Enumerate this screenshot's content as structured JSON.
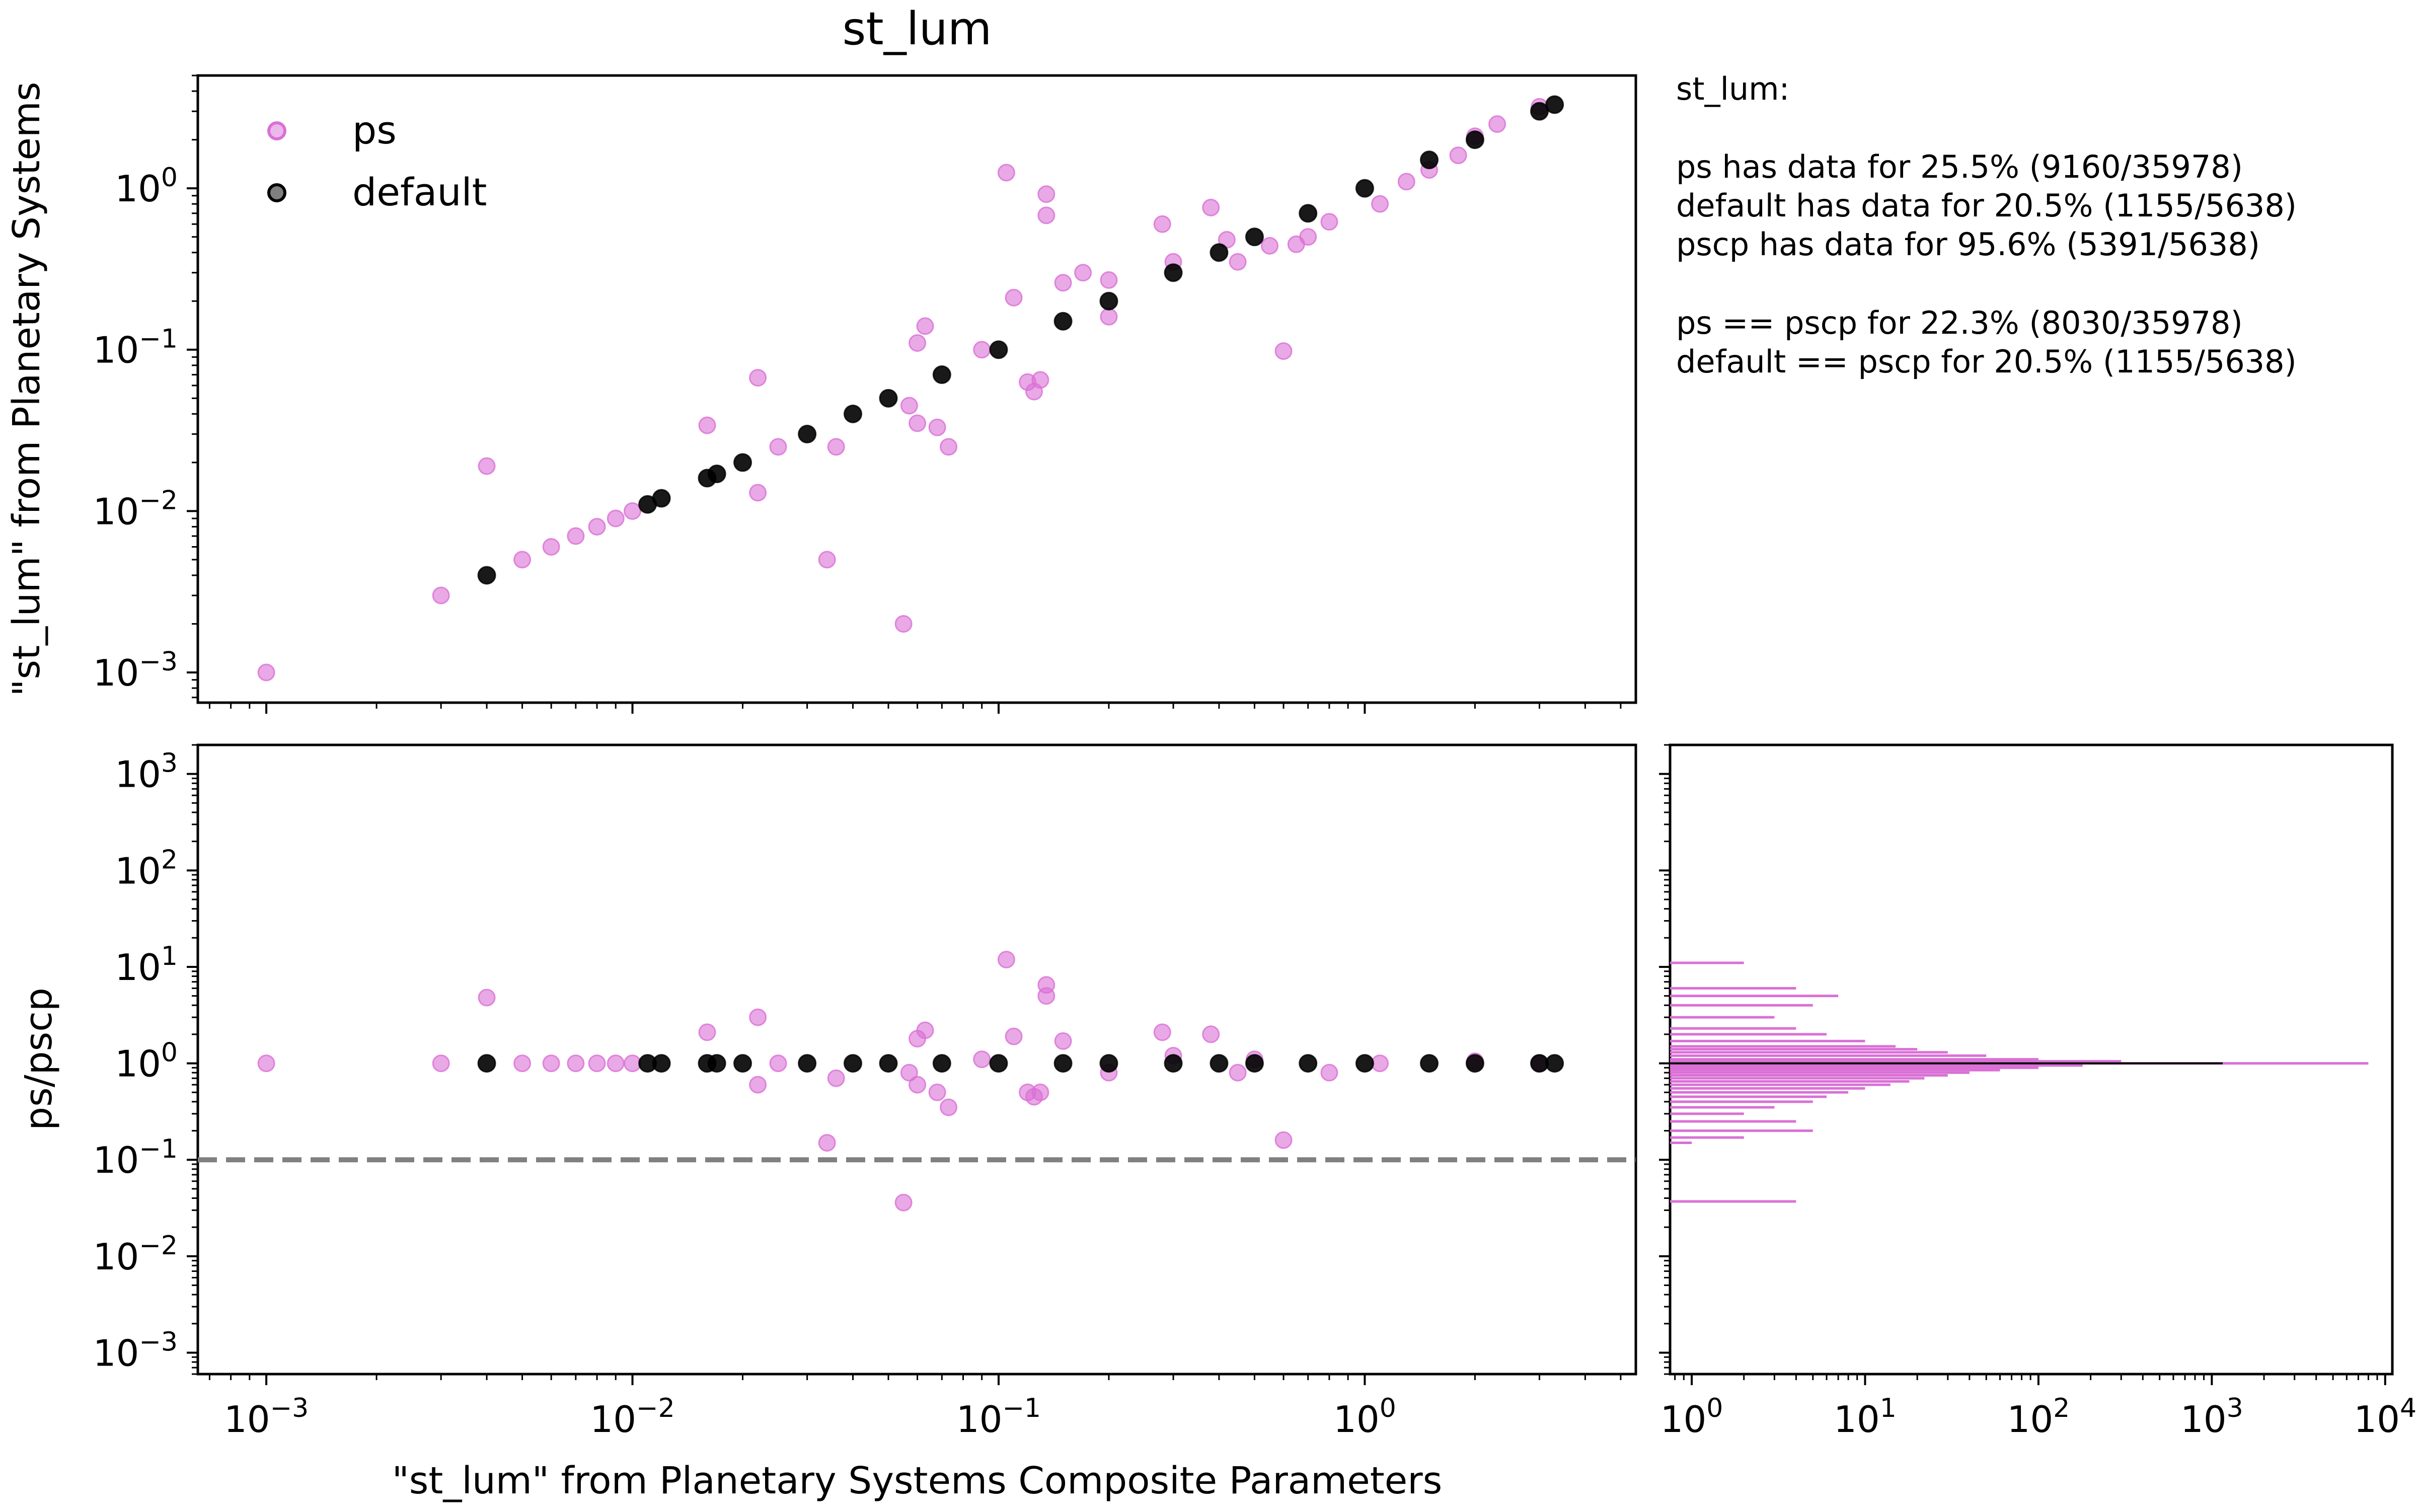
{
  "chart_data": [
    {
      "type": "scatter",
      "title": "st_lum",
      "xlabel": "",
      "ylabel": "\"st_lum\" from Planetary Systems",
      "xscale": "log",
      "yscale": "log",
      "xlim": [
        0.00065,
        5.5
      ],
      "ylim": [
        0.00065,
        5.0
      ],
      "x_ticks": [
        "10^-3",
        "10^-2",
        "10^-1",
        "10^0"
      ],
      "y_ticks": [
        "10^-3",
        "10^-2",
        "10^-1",
        "10^0"
      ],
      "legend": {
        "position": "top-left",
        "entries": [
          "ps",
          "default"
        ]
      },
      "series": [
        {
          "name": "ps",
          "color": "#da70d6",
          "points": [
            [
              0.001,
              0.001
            ],
            [
              0.003,
              0.003
            ],
            [
              0.004,
              0.019
            ],
            [
              0.005,
              0.005
            ],
            [
              0.006,
              0.006
            ],
            [
              0.007,
              0.007
            ],
            [
              0.008,
              0.008
            ],
            [
              0.009,
              0.009
            ],
            [
              0.01,
              0.01
            ],
            [
              0.016,
              0.034
            ],
            [
              0.022,
              0.013
            ],
            [
              0.022,
              0.067
            ],
            [
              0.025,
              0.025
            ],
            [
              0.034,
              0.005
            ],
            [
              0.036,
              0.025
            ],
            [
              0.055,
              0.002
            ],
            [
              0.057,
              0.045
            ],
            [
              0.06,
              0.035
            ],
            [
              0.06,
              0.11
            ],
            [
              0.063,
              0.14
            ],
            [
              0.068,
              0.033
            ],
            [
              0.073,
              0.025
            ],
            [
              0.09,
              0.1
            ],
            [
              0.105,
              1.25
            ],
            [
              0.11,
              0.21
            ],
            [
              0.12,
              0.063
            ],
            [
              0.125,
              0.055
            ],
            [
              0.13,
              0.065
            ],
            [
              0.135,
              0.92
            ],
            [
              0.135,
              0.68
            ],
            [
              0.15,
              0.26
            ],
            [
              0.17,
              0.3
            ],
            [
              0.2,
              0.16
            ],
            [
              0.2,
              0.27
            ],
            [
              0.28,
              0.6
            ],
            [
              0.3,
              0.35
            ],
            [
              0.38,
              0.76
            ],
            [
              0.42,
              0.48
            ],
            [
              0.45,
              0.35
            ],
            [
              0.55,
              0.44
            ],
            [
              0.6,
              0.098
            ],
            [
              0.65,
              0.45
            ],
            [
              0.7,
              0.5
            ],
            [
              0.8,
              0.62
            ],
            [
              1.1,
              0.8
            ],
            [
              1.3,
              1.1
            ],
            [
              1.5,
              1.3
            ],
            [
              1.8,
              1.6
            ],
            [
              2.0,
              2.1
            ],
            [
              2.3,
              2.5
            ],
            [
              3.0,
              3.2
            ]
          ]
        },
        {
          "name": "default",
          "color": "#000000",
          "points": [
            [
              0.004,
              0.004
            ],
            [
              0.011,
              0.011
            ],
            [
              0.012,
              0.012
            ],
            [
              0.016,
              0.016
            ],
            [
              0.017,
              0.017
            ],
            [
              0.02,
              0.02
            ],
            [
              0.03,
              0.03
            ],
            [
              0.04,
              0.04
            ],
            [
              0.05,
              0.05
            ],
            [
              0.07,
              0.07
            ],
            [
              0.1,
              0.1
            ],
            [
              0.15,
              0.15
            ],
            [
              0.2,
              0.2
            ],
            [
              0.3,
              0.3
            ],
            [
              0.4,
              0.4
            ],
            [
              0.5,
              0.5
            ],
            [
              0.7,
              0.7
            ],
            [
              1.0,
              1.0
            ],
            [
              1.5,
              1.5
            ],
            [
              2.0,
              2.0
            ],
            [
              3.0,
              3.0
            ],
            [
              3.3,
              3.3
            ]
          ]
        }
      ]
    },
    {
      "type": "scatter",
      "xlabel": "\"st_lum\" from Planetary Systems Composite Parameters",
      "ylabel": "ps/pscp",
      "xscale": "log",
      "yscale": "log",
      "xlim": [
        0.00065,
        5.5
      ],
      "ylim": [
        0.0006,
        2000
      ],
      "x_ticks": [
        "10^-3",
        "10^-2",
        "10^-1",
        "10^0"
      ],
      "y_ticks": [
        "10^-3",
        "10^-2",
        "10^-1",
        "10^0",
        "10^1",
        "10^2",
        "10^3"
      ],
      "reference_line": {
        "y": 0.1,
        "style": "dashed",
        "color": "#808080"
      },
      "series": [
        {
          "name": "ps",
          "color": "#da70d6",
          "points": [
            [
              0.001,
              1.0
            ],
            [
              0.003,
              1.0
            ],
            [
              0.004,
              4.8
            ],
            [
              0.005,
              1.0
            ],
            [
              0.006,
              1.0
            ],
            [
              0.007,
              1.0
            ],
            [
              0.008,
              1.0
            ],
            [
              0.009,
              1.0
            ],
            [
              0.01,
              1.0
            ],
            [
              0.016,
              2.1
            ],
            [
              0.022,
              0.6
            ],
            [
              0.022,
              3.0
            ],
            [
              0.025,
              1.0
            ],
            [
              0.034,
              0.15
            ],
            [
              0.036,
              0.7
            ],
            [
              0.055,
              0.036
            ],
            [
              0.057,
              0.8
            ],
            [
              0.06,
              0.6
            ],
            [
              0.06,
              1.8
            ],
            [
              0.063,
              2.2
            ],
            [
              0.068,
              0.5
            ],
            [
              0.073,
              0.35
            ],
            [
              0.09,
              1.1
            ],
            [
              0.105,
              11.9
            ],
            [
              0.11,
              1.9
            ],
            [
              0.12,
              0.5
            ],
            [
              0.125,
              0.45
            ],
            [
              0.13,
              0.5
            ],
            [
              0.135,
              6.5
            ],
            [
              0.135,
              5.0
            ],
            [
              0.15,
              1.7
            ],
            [
              0.2,
              0.8
            ],
            [
              0.28,
              2.1
            ],
            [
              0.38,
              2.0
            ],
            [
              0.45,
              0.8
            ],
            [
              0.6,
              0.16
            ],
            [
              0.3,
              1.2
            ],
            [
              0.5,
              1.1
            ],
            [
              0.8,
              0.8
            ],
            [
              1.1,
              1.0
            ],
            [
              2.0,
              1.05
            ],
            [
              3.0,
              1.0
            ]
          ]
        },
        {
          "name": "default",
          "color": "#000000",
          "points": [
            [
              0.004,
              1.0
            ],
            [
              0.011,
              1.0
            ],
            [
              0.012,
              1.0
            ],
            [
              0.016,
              1.0
            ],
            [
              0.017,
              1.0
            ],
            [
              0.02,
              1.0
            ],
            [
              0.03,
              1.0
            ],
            [
              0.04,
              1.0
            ],
            [
              0.05,
              1.0
            ],
            [
              0.07,
              1.0
            ],
            [
              0.1,
              1.0
            ],
            [
              0.15,
              1.0
            ],
            [
              0.2,
              1.0
            ],
            [
              0.3,
              1.0
            ],
            [
              0.4,
              1.0
            ],
            [
              0.5,
              1.0
            ],
            [
              0.7,
              1.0
            ],
            [
              1.0,
              1.0
            ],
            [
              1.5,
              1.0
            ],
            [
              2.0,
              1.0
            ],
            [
              3.0,
              1.0
            ],
            [
              3.3,
              1.0
            ]
          ]
        }
      ]
    },
    {
      "type": "bar",
      "orientation": "horizontal",
      "xscale": "log",
      "yscale": "log",
      "xlim": [
        0.75,
        11000
      ],
      "ylim": [
        0.0006,
        2000
      ],
      "x_ticks": [
        "10^0",
        "10^1",
        "10^2",
        "10^3",
        "10^4"
      ],
      "series": [
        {
          "name": "ps",
          "color": "#da70d6",
          "bars": [
            [
              0.037,
              4
            ],
            [
              0.15,
              1
            ],
            [
              0.17,
              2
            ],
            [
              0.2,
              5
            ],
            [
              0.25,
              4
            ],
            [
              0.3,
              2
            ],
            [
              0.35,
              3
            ],
            [
              0.4,
              5
            ],
            [
              0.45,
              6
            ],
            [
              0.5,
              8
            ],
            [
              0.55,
              10
            ],
            [
              0.6,
              14
            ],
            [
              0.65,
              18
            ],
            [
              0.7,
              22
            ],
            [
              0.75,
              30
            ],
            [
              0.8,
              40
            ],
            [
              0.85,
              60
            ],
            [
              0.9,
              100
            ],
            [
              0.95,
              180
            ],
            [
              1.0,
              8000
            ],
            [
              1.05,
              300
            ],
            [
              1.1,
              100
            ],
            [
              1.2,
              50
            ],
            [
              1.3,
              30
            ],
            [
              1.4,
              20
            ],
            [
              1.5,
              15
            ],
            [
              1.7,
              10
            ],
            [
              2.0,
              6
            ],
            [
              2.3,
              4
            ],
            [
              3.0,
              3
            ],
            [
              4.0,
              5
            ],
            [
              5.0,
              7
            ],
            [
              6.0,
              4
            ],
            [
              11.0,
              2
            ]
          ]
        },
        {
          "name": "default",
          "color": "#000000",
          "bars": [
            [
              1.0,
              1155
            ]
          ]
        }
      ]
    }
  ],
  "stats": {
    "title": "st_lum:",
    "lines": [
      "ps has data for 25.5% (9160/35978)",
      "default has data for 20.5% (1155/5638)",
      "pscp has data for 95.6% (5391/5638)",
      "ps == pscp  for 22.3% (8030/35978)",
      "default == pscp  for 20.5% (1155/5638)"
    ]
  }
}
